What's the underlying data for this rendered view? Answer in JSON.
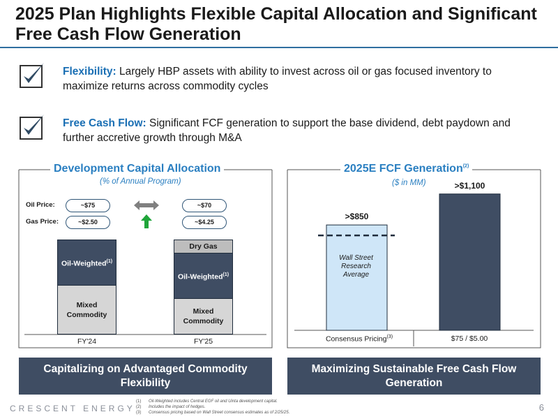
{
  "header": {
    "title": "2025 Plan Highlights Flexible Capital Allocation and Significant Free Cash Flow Generation"
  },
  "bullets": [
    {
      "lead": "Flexibility:",
      "text": " Largely HBP assets with ability to invest across oil or gas focused inventory to maximize returns across commodity cycles",
      "icon": "checkbox-check-icon"
    },
    {
      "lead": "Free Cash Flow:",
      "text": " Significant FCF generation to support the base dividend, debt paydown and further accretive growth through M&A",
      "icon": "checkbox-check-icon"
    }
  ],
  "left_panel": {
    "title": "Development Capital Allocation",
    "subtitle": "(% of Annual Program)",
    "oil_price_label": "Oil Price:",
    "gas_price_label": "Gas Price:",
    "fy24_oil_price": "~$75",
    "fy24_gas_price": "~$2.50",
    "fy25_oil_price": "~$70",
    "fy25_gas_price": "~$4.25",
    "footer": "Capitalizing on Advantaged Commodity Flexibility",
    "colors": {
      "oil": "#3f4d63",
      "mixed": "#d6d6d6",
      "dry_gas": "#bdbdbd",
      "arrow_gray": "#808080",
      "arrow_green": "#1fa53a"
    }
  },
  "right_panel": {
    "title": "2025E FCF Generation",
    "title_sup": "(2)",
    "subtitle": "($ in MM)",
    "wall_street_label": "Wall Street Research Average",
    "footer": "Maximizing Sustainable Free Cash Flow Generation",
    "colors": {
      "consensus": "#cfe6f8",
      "plan": "#3f4d63"
    }
  },
  "chart_data": [
    {
      "type": "bar",
      "stacked": true,
      "categories": [
        "FY'24",
        "FY'25"
      ],
      "series": [
        {
          "name": "Mixed Commodity",
          "values": [
            42,
            32
          ]
        },
        {
          "name": "Oil-Weighted",
          "name_sup": "(1)",
          "values": [
            58,
            53
          ]
        },
        {
          "name": "Dry Gas",
          "values": [
            0,
            15
          ]
        }
      ]
    },
    {
      "type": "bar",
      "categories": [
        "Consensus Pricing",
        "$75 / $5.00"
      ],
      "category_sups": [
        "(3)",
        ""
      ],
      "values": [
        850,
        1100
      ],
      "data_labels": [
        ">$850",
        ">$1,100"
      ],
      "ylim": [
        0,
        1200
      ]
    }
  ],
  "footer": {
    "brand": "CRESCENT ENERGY",
    "page": "6",
    "notes": [
      {
        "num": "(1)",
        "text": "Oil-Weighted includes Central EGF oil and Uinta development capital."
      },
      {
        "num": "(2)",
        "text": "Includes the impact of hedges."
      },
      {
        "num": "(3)",
        "text": "Consensus pricing based on Wall Street consensus estimates as of 2/25/25."
      }
    ]
  }
}
